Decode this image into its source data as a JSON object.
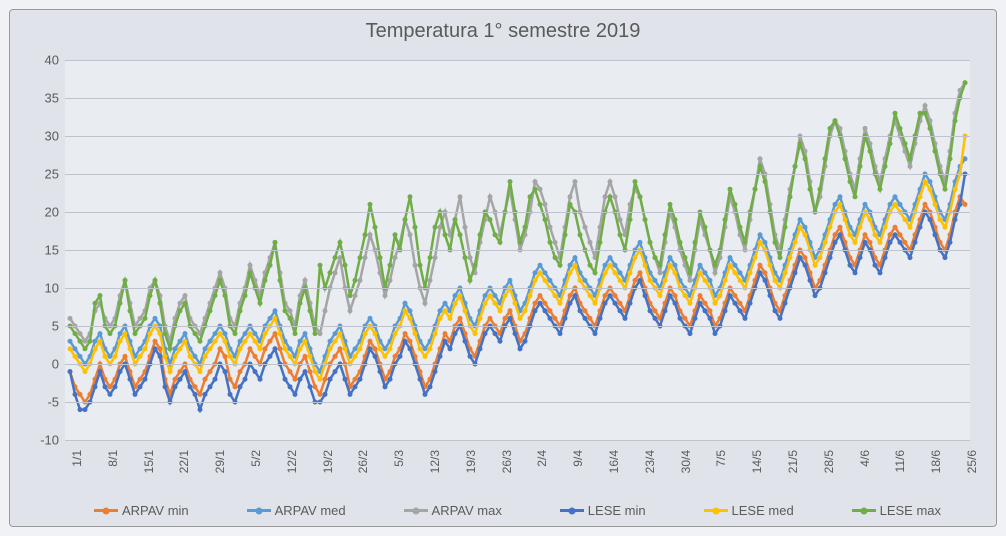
{
  "chart": {
    "type": "line",
    "title": "Temperatura 1° semestre 2019",
    "title_fontsize": 20,
    "title_color": "#5a5a5a",
    "background_color": "#e0e4ea",
    "plot_background_color": "#e9ecf1",
    "grid_color": "#bfc4cc",
    "ylim": [
      -10,
      40
    ],
    "ytick_step": 5,
    "y_ticks": [
      -10,
      -5,
      0,
      5,
      10,
      15,
      20,
      25,
      30,
      35,
      40
    ],
    "x_categories": [
      "1/1",
      "8/1",
      "15/1",
      "22/1",
      "29/1",
      "5/2",
      "12/2",
      "19/2",
      "26/2",
      "5/3",
      "12/3",
      "19/3",
      "26/3",
      "2/4",
      "9/4",
      "16/4",
      "23/4",
      "30/4",
      "7/5",
      "14/5",
      "21/5",
      "28/5",
      "4/6",
      "11/6",
      "18/6",
      "25/6"
    ],
    "n_points": 180,
    "line_width": 2.5,
    "marker_radius": 2.5,
    "series": [
      {
        "name": "ARPAV min",
        "color": "#ED7D31",
        "values": [
          -1,
          -3,
          -4,
          -5,
          -4,
          -2,
          0,
          -2,
          -3,
          -2,
          0,
          1,
          -1,
          -3,
          -2,
          -1,
          1,
          3,
          2,
          -2,
          -4,
          -2,
          -1,
          0,
          -2,
          -3,
          -4,
          -2,
          -1,
          0,
          2,
          1,
          -2,
          -3,
          -1,
          0,
          2,
          1,
          0,
          2,
          3,
          4,
          2,
          0,
          -1,
          -2,
          0,
          1,
          -1,
          -3,
          -4,
          -2,
          0,
          1,
          2,
          0,
          -3,
          -2,
          -1,
          1,
          3,
          2,
          0,
          -2,
          -1,
          1,
          2,
          4,
          3,
          1,
          -1,
          -3,
          -2,
          0,
          2,
          4,
          3,
          5,
          6,
          4,
          2,
          1,
          3,
          5,
          6,
          5,
          4,
          6,
          7,
          5,
          3,
          4,
          6,
          8,
          9,
          8,
          7,
          6,
          5,
          7,
          9,
          10,
          8,
          7,
          6,
          5,
          7,
          9,
          10,
          9,
          8,
          7,
          9,
          11,
          12,
          10,
          8,
          7,
          6,
          8,
          10,
          9,
          7,
          6,
          5,
          7,
          9,
          8,
          7,
          5,
          6,
          8,
          10,
          9,
          8,
          7,
          9,
          11,
          13,
          12,
          10,
          8,
          7,
          9,
          11,
          13,
          15,
          14,
          12,
          10,
          11,
          13,
          15,
          17,
          18,
          16,
          14,
          13,
          15,
          17,
          16,
          14,
          13,
          15,
          17,
          18,
          17,
          16,
          15,
          17,
          19,
          21,
          20,
          18,
          16,
          15,
          17,
          20,
          22,
          21
        ]
      },
      {
        "name": "ARPAV med",
        "color": "#5B9BD5",
        "values": [
          3,
          2,
          1,
          0,
          1,
          3,
          4,
          2,
          1,
          2,
          4,
          5,
          3,
          1,
          2,
          3,
          5,
          6,
          5,
          2,
          0,
          2,
          3,
          4,
          2,
          1,
          0,
          2,
          3,
          4,
          5,
          4,
          2,
          1,
          3,
          4,
          5,
          4,
          3,
          5,
          6,
          7,
          5,
          3,
          2,
          1,
          3,
          4,
          2,
          0,
          -1,
          1,
          3,
          4,
          5,
          3,
          1,
          2,
          3,
          5,
          6,
          5,
          3,
          2,
          3,
          5,
          6,
          8,
          7,
          5,
          3,
          2,
          3,
          5,
          7,
          8,
          7,
          9,
          10,
          8,
          6,
          5,
          7,
          9,
          10,
          9,
          8,
          10,
          11,
          9,
          7,
          8,
          10,
          12,
          13,
          12,
          11,
          10,
          9,
          11,
          13,
          14,
          12,
          11,
          10,
          9,
          11,
          13,
          14,
          13,
          12,
          11,
          13,
          15,
          16,
          14,
          12,
          11,
          10,
          12,
          14,
          13,
          11,
          10,
          9,
          11,
          13,
          12,
          11,
          9,
          10,
          12,
          14,
          13,
          12,
          11,
          13,
          15,
          17,
          16,
          14,
          12,
          11,
          13,
          15,
          17,
          19,
          18,
          16,
          14,
          15,
          17,
          19,
          21,
          22,
          20,
          18,
          17,
          19,
          21,
          20,
          18,
          17,
          19,
          21,
          22,
          21,
          20,
          19,
          21,
          23,
          25,
          24,
          22,
          20,
          19,
          21,
          24,
          26,
          27
        ]
      },
      {
        "name": "ARPAV max",
        "color": "#A5A5A5",
        "values": [
          6,
          5,
          4,
          3,
          4,
          7,
          8,
          6,
          5,
          6,
          9,
          11,
          8,
          5,
          6,
          7,
          10,
          11,
          9,
          5,
          3,
          6,
          8,
          9,
          6,
          5,
          4,
          6,
          8,
          10,
          12,
          10,
          6,
          5,
          8,
          10,
          13,
          11,
          9,
          12,
          14,
          16,
          12,
          8,
          7,
          5,
          9,
          11,
          8,
          5,
          4,
          7,
          10,
          12,
          14,
          10,
          7,
          9,
          11,
          14,
          17,
          15,
          12,
          9,
          11,
          14,
          16,
          19,
          17,
          13,
          10,
          8,
          11,
          14,
          18,
          20,
          17,
          19,
          22,
          18,
          14,
          12,
          16,
          19,
          22,
          20,
          17,
          20,
          23,
          19,
          15,
          17,
          20,
          24,
          23,
          21,
          18,
          16,
          14,
          18,
          22,
          24,
          20,
          18,
          16,
          14,
          18,
          22,
          24,
          22,
          19,
          17,
          21,
          23,
          22,
          19,
          16,
          14,
          12,
          16,
          20,
          18,
          15,
          13,
          11,
          15,
          19,
          17,
          15,
          12,
          14,
          18,
          22,
          20,
          17,
          15,
          19,
          23,
          27,
          25,
          21,
          17,
          15,
          19,
          23,
          26,
          30,
          28,
          24,
          20,
          22,
          26,
          30,
          32,
          31,
          28,
          25,
          23,
          27,
          31,
          29,
          26,
          24,
          27,
          30,
          32,
          30,
          28,
          26,
          29,
          32,
          34,
          32,
          29,
          26,
          24,
          28,
          33,
          36,
          37
        ]
      },
      {
        "name": "LESE min",
        "color": "#4472C4",
        "values": [
          -1,
          -4,
          -6,
          -6,
          -5,
          -3,
          -1,
          -3,
          -4,
          -3,
          -1,
          0,
          -2,
          -4,
          -3,
          -2,
          0,
          2,
          1,
          -3,
          -5,
          -3,
          -2,
          -1,
          -3,
          -4,
          -6,
          -4,
          -3,
          -2,
          0,
          -1,
          -4,
          -5,
          -3,
          -2,
          0,
          -1,
          -2,
          0,
          1,
          2,
          0,
          -2,
          -3,
          -4,
          -2,
          -1,
          -3,
          -5,
          -5,
          -4,
          -2,
          -1,
          0,
          -2,
          -4,
          -3,
          -2,
          0,
          2,
          1,
          -1,
          -3,
          -2,
          0,
          1,
          3,
          2,
          0,
          -2,
          -4,
          -3,
          -1,
          1,
          3,
          2,
          4,
          5,
          3,
          1,
          0,
          2,
          4,
          5,
          4,
          3,
          5,
          6,
          4,
          2,
          3,
          5,
          7,
          8,
          7,
          6,
          5,
          4,
          6,
          8,
          9,
          7,
          6,
          5,
          4,
          6,
          8,
          9,
          8,
          7,
          6,
          8,
          10,
          11,
          9,
          7,
          6,
          5,
          7,
          9,
          8,
          6,
          5,
          4,
          6,
          8,
          7,
          6,
          4,
          5,
          7,
          9,
          8,
          7,
          6,
          8,
          10,
          12,
          11,
          9,
          7,
          6,
          8,
          10,
          12,
          14,
          13,
          11,
          9,
          10,
          12,
          14,
          16,
          17,
          15,
          13,
          12,
          14,
          16,
          15,
          13,
          12,
          14,
          16,
          17,
          16,
          15,
          14,
          16,
          18,
          20,
          19,
          17,
          15,
          14,
          16,
          19,
          21,
          25
        ]
      },
      {
        "name": "LESE med",
        "color": "#FFC000",
        "values": [
          2,
          1,
          0,
          -1,
          0,
          2,
          3,
          1,
          0,
          1,
          3,
          4,
          2,
          0,
          1,
          2,
          4,
          5,
          4,
          1,
          -1,
          1,
          2,
          3,
          1,
          0,
          -1,
          1,
          2,
          3,
          4,
          3,
          1,
          0,
          2,
          3,
          4,
          3,
          2,
          4,
          5,
          6,
          4,
          2,
          1,
          0,
          2,
          3,
          1,
          -1,
          -2,
          0,
          2,
          3,
          4,
          2,
          0,
          1,
          2,
          4,
          5,
          4,
          2,
          1,
          2,
          4,
          5,
          7,
          6,
          4,
          2,
          1,
          2,
          4,
          6,
          7,
          6,
          8,
          9,
          7,
          5,
          4,
          6,
          8,
          9,
          8,
          7,
          9,
          10,
          8,
          6,
          7,
          9,
          11,
          12,
          11,
          10,
          9,
          8,
          10,
          12,
          13,
          11,
          10,
          9,
          8,
          10,
          12,
          13,
          12,
          11,
          10,
          12,
          14,
          15,
          13,
          11,
          10,
          9,
          11,
          13,
          12,
          10,
          9,
          8,
          10,
          12,
          11,
          10,
          8,
          9,
          11,
          13,
          12,
          11,
          10,
          12,
          14,
          16,
          15,
          13,
          11,
          10,
          12,
          14,
          16,
          18,
          17,
          15,
          13,
          14,
          16,
          18,
          20,
          21,
          19,
          17,
          16,
          18,
          20,
          19,
          17,
          16,
          18,
          20,
          21,
          20,
          19,
          18,
          20,
          22,
          24,
          23,
          21,
          19,
          18,
          20,
          23,
          25,
          30
        ]
      },
      {
        "name": "LESE max",
        "color": "#70AD47",
        "values": [
          5,
          4,
          3,
          2,
          3,
          8,
          9,
          5,
          4,
          5,
          8,
          11,
          7,
          4,
          5,
          6,
          9,
          11,
          8,
          4,
          2,
          5,
          7,
          8,
          5,
          4,
          3,
          5,
          7,
          9,
          11,
          9,
          5,
          4,
          7,
          9,
          12,
          10,
          8,
          11,
          13,
          16,
          11,
          7,
          6,
          4,
          8,
          10,
          7,
          4,
          13,
          10,
          12,
          14,
          16,
          13,
          9,
          11,
          14,
          17,
          21,
          18,
          14,
          10,
          13,
          17,
          15,
          19,
          22,
          18,
          13,
          10,
          14,
          18,
          20,
          17,
          15,
          19,
          17,
          14,
          11,
          13,
          17,
          20,
          19,
          17,
          16,
          20,
          24,
          20,
          16,
          18,
          22,
          23,
          21,
          19,
          16,
          14,
          13,
          17,
          21,
          20,
          17,
          15,
          13,
          12,
          16,
          20,
          22,
          20,
          17,
          15,
          19,
          24,
          22,
          19,
          16,
          14,
          13,
          17,
          21,
          19,
          16,
          14,
          12,
          16,
          20,
          18,
          15,
          13,
          15,
          19,
          23,
          21,
          18,
          16,
          20,
          23,
          26,
          24,
          20,
          16,
          14,
          18,
          22,
          26,
          29,
          27,
          23,
          20,
          23,
          27,
          31,
          32,
          30,
          27,
          24,
          22,
          26,
          30,
          28,
          25,
          23,
          26,
          29,
          33,
          31,
          29,
          27,
          30,
          33,
          33,
          31,
          28,
          25,
          23,
          27,
          32,
          35,
          37
        ]
      }
    ]
  }
}
